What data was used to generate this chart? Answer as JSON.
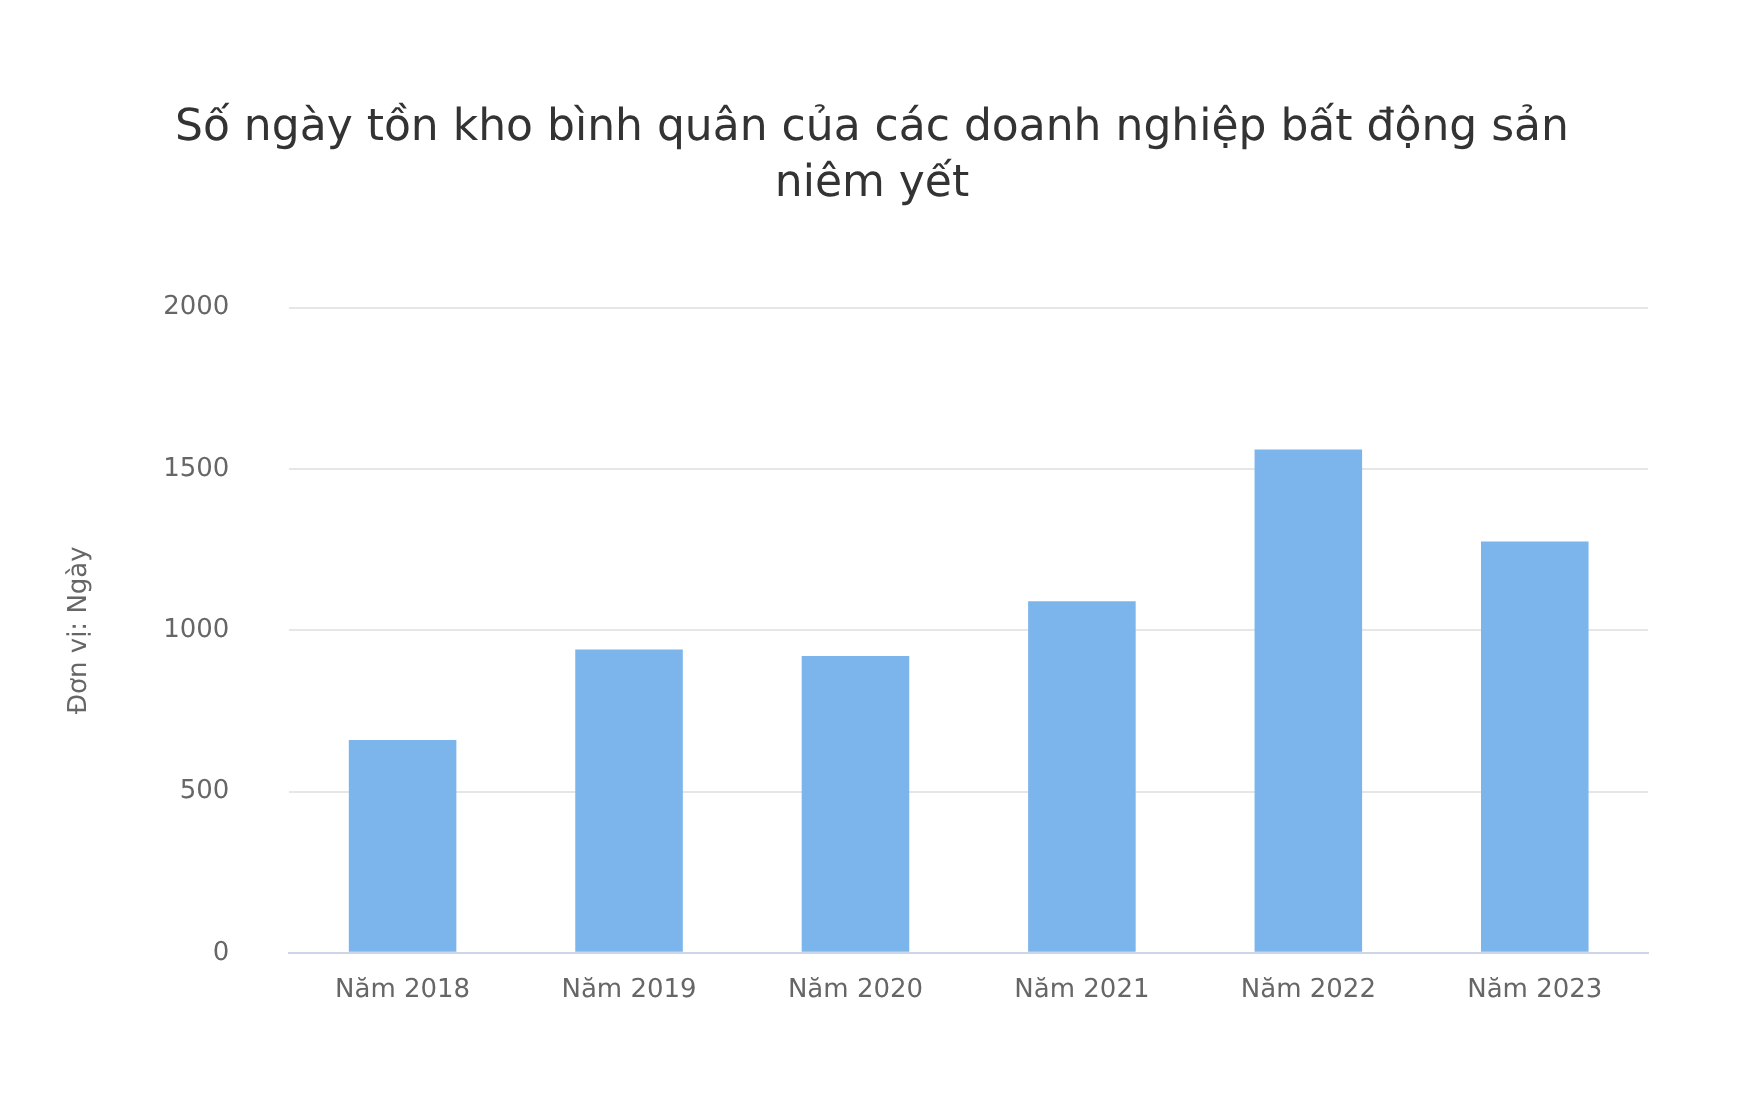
{
  "chart_data": {
    "type": "bar",
    "title": "Số ngày tồn kho bình quân của các doanh nghiệp bất động sản niêm yết",
    "ylabel": "Đơn vị: Ngày",
    "categories": [
      "Năm 2018",
      "Năm 2019",
      "Năm 2020",
      "Năm 2021",
      "Năm 2022",
      "Năm 2023"
    ],
    "series": [
      {
        "color": "#7cb5ec",
        "values": [
          660,
          940,
          920,
          1090,
          1560,
          1275
        ]
      }
    ],
    "ylim": [
      0,
      2000
    ],
    "yticks": [
      0,
      500,
      1000,
      1500,
      2000
    ],
    "grid": "y",
    "legend": false
  }
}
